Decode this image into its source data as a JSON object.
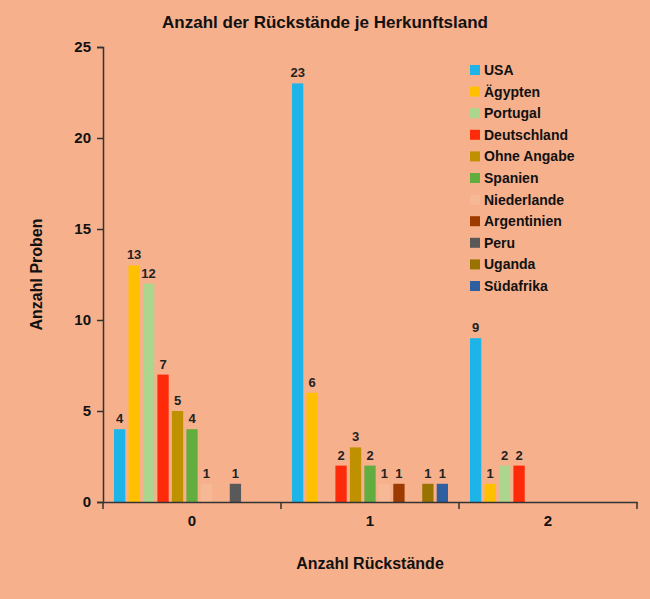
{
  "chart_data": {
    "type": "bar",
    "title": "Anzahl der Rückstände je Herkunftsland",
    "x_label": "Anzahl Rückstände",
    "y_label": "Anzahl Proben",
    "categories": [
      "0",
      "1",
      "2"
    ],
    "series": [
      {
        "name": "USA",
        "color": "#1fb4e8",
        "values": [
          4,
          23,
          9
        ]
      },
      {
        "name": "Ägypten",
        "color": "#ffc000",
        "values": [
          13,
          6,
          1
        ]
      },
      {
        "name": "Portugal",
        "color": "#acd68e",
        "values": [
          12,
          null,
          2
        ]
      },
      {
        "name": "Deutschland",
        "color": "#ff2a0a",
        "values": [
          7,
          2,
          2
        ]
      },
      {
        "name": "Ohne Angabe",
        "color": "#bf9000",
        "values": [
          5,
          3,
          null
        ]
      },
      {
        "name": "Spanien",
        "color": "#62ad3f",
        "values": [
          4,
          2,
          null
        ]
      },
      {
        "name": "Niederlande",
        "color": "#f7b896",
        "values": [
          1,
          1,
          null
        ]
      },
      {
        "name": "Argentinien",
        "color": "#9c3a00",
        "values": [
          null,
          1,
          null
        ]
      },
      {
        "name": "Peru",
        "color": "#595959",
        "values": [
          1,
          null,
          null
        ]
      },
      {
        "name": "Uganda",
        "color": "#997300",
        "values": [
          null,
          1,
          null
        ]
      },
      {
        "name": "Südafrika",
        "color": "#2e5fa0",
        "values": [
          null,
          1,
          null
        ]
      }
    ],
    "ylim": [
      0,
      25
    ],
    "yticks": [
      0,
      5,
      10,
      15,
      20,
      25
    ],
    "grid": false,
    "legend": "top-right",
    "data_labels": true
  }
}
